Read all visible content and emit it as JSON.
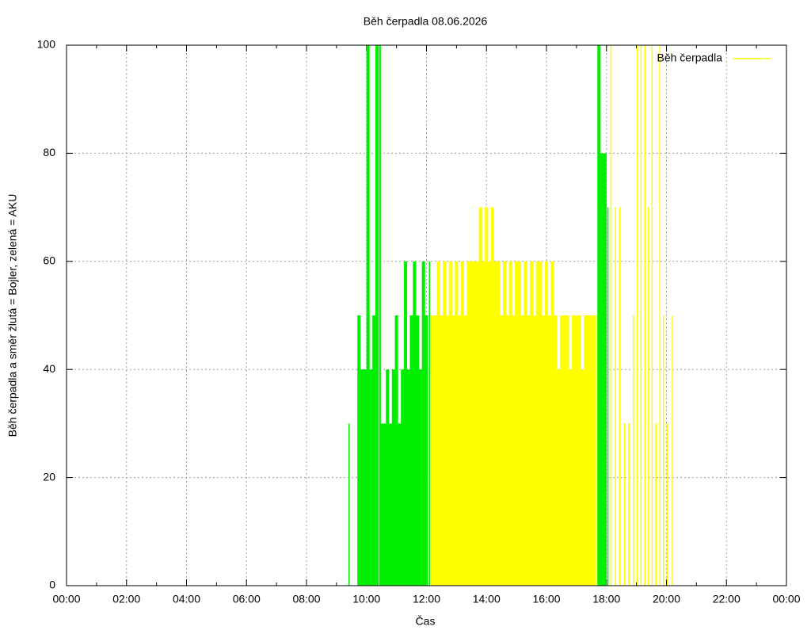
{
  "chart_data": {
    "type": "impulse",
    "title": "Běh čerpadla 08.06.2026",
    "xlabel": "Čas",
    "ylabel": "Běh čerpadla a směr žlutá = Bojler, zelená = AKU",
    "xlim": [
      0,
      24
    ],
    "xticks": [
      {
        "value": 0,
        "label": "00:00"
      },
      {
        "value": 2,
        "label": "02:00"
      },
      {
        "value": 4,
        "label": "04:00"
      },
      {
        "value": 6,
        "label": "06:00"
      },
      {
        "value": 8,
        "label": "08:00"
      },
      {
        "value": 10,
        "label": "10:00"
      },
      {
        "value": 12,
        "label": "12:00"
      },
      {
        "value": 14,
        "label": "14:00"
      },
      {
        "value": 16,
        "label": "16:00"
      },
      {
        "value": 18,
        "label": "18:00"
      },
      {
        "value": 20,
        "label": "20:00"
      },
      {
        "value": 22,
        "label": "22:00"
      },
      {
        "value": 24,
        "label": "00:00"
      }
    ],
    "ylim": [
      0,
      100
    ],
    "yticks": [
      0,
      20,
      40,
      60,
      80,
      100
    ],
    "grid": true,
    "legend": "top-right",
    "series": [
      {
        "name": "Běh čerpadla",
        "color": "#ffff00",
        "x": [
          12.2,
          12.3,
          12.4,
          12.5,
          12.6,
          12.7,
          12.8,
          12.9,
          13.0,
          13.1,
          13.2,
          13.3,
          13.4,
          13.5,
          13.6,
          13.7,
          13.8,
          13.9,
          14.0,
          14.1,
          14.2,
          14.3,
          14.4,
          14.5,
          14.6,
          14.7,
          14.8,
          14.9,
          15.0,
          15.1,
          15.2,
          15.3,
          15.4,
          15.5,
          15.6,
          15.7,
          15.8,
          15.9,
          16.0,
          16.1,
          16.2,
          16.3,
          16.4,
          16.5,
          16.6,
          16.7,
          16.8,
          16.9,
          17.0,
          17.1,
          17.2,
          17.3,
          17.4,
          17.5,
          17.6,
          17.7,
          18.15,
          18.3,
          18.45,
          18.6,
          18.75,
          18.9,
          19.03,
          19.15,
          19.28,
          19.4,
          19.52,
          19.65,
          19.78,
          19.9,
          20.03,
          20.2
        ],
        "values": [
          50,
          50,
          60,
          50,
          60,
          50,
          60,
          50,
          60,
          50,
          60,
          50,
          60,
          60,
          60,
          60,
          70,
          60,
          70,
          60,
          70,
          60,
          60,
          50,
          60,
          50,
          60,
          50,
          60,
          60,
          50,
          60,
          50,
          60,
          50,
          60,
          60,
          50,
          60,
          50,
          60,
          50,
          40,
          50,
          50,
          50,
          40,
          50,
          50,
          50,
          40,
          50,
          50,
          50,
          50,
          50,
          100,
          70,
          70,
          30,
          30,
          50,
          100,
          100,
          100,
          70,
          100,
          30,
          100,
          50,
          30,
          50
        ]
      },
      {
        "color": "#00ee00",
        "x": [
          9.42,
          9.75,
          9.85,
          9.95,
          10.05,
          10.15,
          10.25,
          10.35,
          10.45,
          10.5,
          10.6,
          10.7,
          10.8,
          10.9,
          11.0,
          11.1,
          11.2,
          11.3,
          11.4,
          11.5,
          11.6,
          11.7,
          11.8,
          11.9,
          12.0,
          12.1,
          17.75,
          17.85,
          17.95,
          18.05
        ],
        "values": [
          30,
          50,
          40,
          40,
          100,
          40,
          50,
          100,
          100,
          30,
          30,
          40,
          30,
          40,
          50,
          30,
          40,
          60,
          40,
          50,
          60,
          50,
          40,
          60,
          50,
          60,
          100,
          80,
          80,
          70
        ]
      }
    ]
  }
}
